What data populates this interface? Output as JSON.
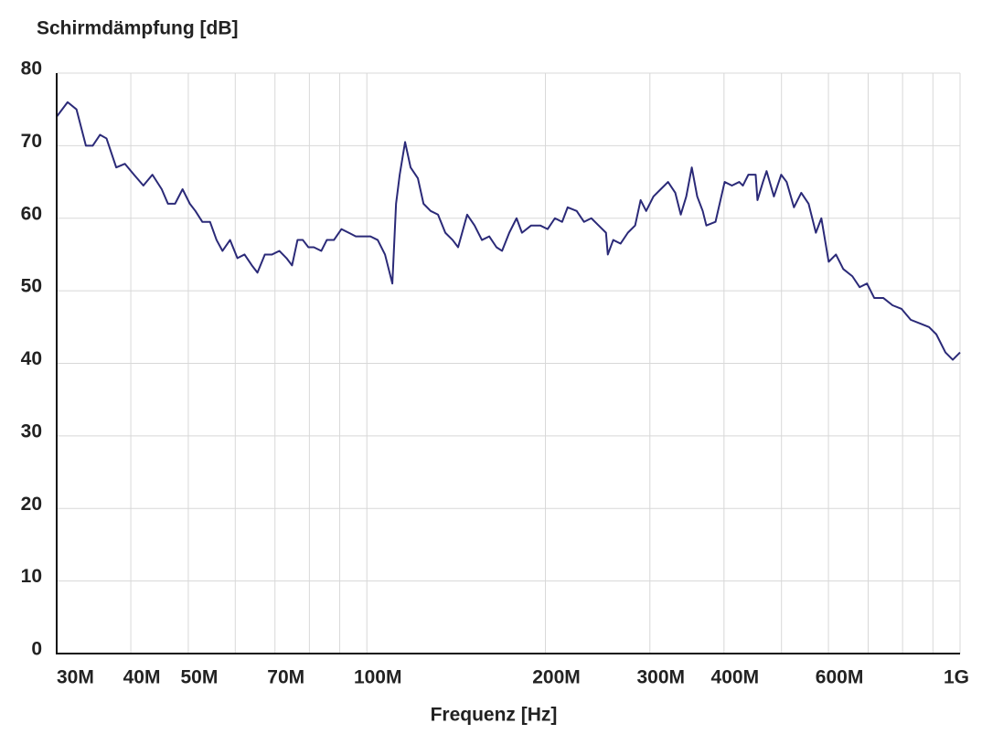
{
  "chart_data": {
    "type": "line",
    "title": "Schirmdämpfung [dB]",
    "x_label": "Frequenz [Hz]",
    "xscale": "log",
    "xlim": [
      30000000.0,
      1000000000.0
    ],
    "xticks": [
      {
        "value": 30000000.0,
        "label": "30M"
      },
      {
        "value": 40000000.0,
        "label": "40M"
      },
      {
        "value": 50000000.0,
        "label": "50M"
      },
      {
        "value": 70000000.0,
        "label": "70M"
      },
      {
        "value": 100000000.0,
        "label": "100M"
      },
      {
        "value": 200000000.0,
        "label": "200M"
      },
      {
        "value": 300000000.0,
        "label": "300M"
      },
      {
        "value": 400000000.0,
        "label": "400M"
      },
      {
        "value": 600000000.0,
        "label": "600M"
      },
      {
        "value": 1000000000.0,
        "label": "1G"
      }
    ],
    "xgrid": [
      60000000.0,
      80000000.0,
      90000000.0,
      500000000.0,
      700000000.0,
      800000000.0,
      900000000.0
    ],
    "ylim": [
      0,
      80
    ],
    "yticks": [
      0,
      10,
      20,
      30,
      40,
      50,
      60,
      70,
      80
    ],
    "grid": true,
    "color": "#2b2a78",
    "x": [
      30000000.0,
      31300000.0,
      32400000.0,
      33600000.0,
      34500000.0,
      35500000.0,
      36400000.0,
      37800000.0,
      39100000.0,
      40500000.0,
      42000000.0,
      43500000.0,
      45100000.0,
      46200000.0,
      47500000.0,
      48900000.0,
      50300000.0,
      51400000.0,
      52800000.0,
      54400000.0,
      55800000.0,
      57100000.0,
      58800000.0,
      60500000.0,
      62200000.0,
      64000000.0,
      65400000.0,
      67300000.0,
      69200000.0,
      71200000.0,
      73200000.0,
      74800000.0,
      76400000.0,
      78000000.0,
      79700000.0,
      81400000.0,
      83800000.0,
      85600000.0,
      88000000.0,
      90600000.0,
      93200000.0,
      95800000.0,
      98600000.0,
      101400000.0,
      104300000.0,
      107300000.0,
      110400000.0,
      112000000.0,
      113600000.0,
      116000000.0,
      118500000.0,
      121900000.0,
      124600000.0,
      128100000.0,
      131800000.0,
      135600000.0,
      139500000.0,
      142500000.0,
      147600000.0,
      151900000.0,
      156300000.0,
      160800000.0,
      165400000.0,
      169000000.0,
      173800000.0,
      178800000.0,
      182600000.0,
      189200000.0,
      196000000.0,
      201700000.0,
      207500000.0,
      213400000.0,
      218000000.0,
      225800000.0,
      232300000.0,
      239000000.0,
      245900000.0,
      253000000.0,
      254800000.0,
      260200000.0,
      267700000.0,
      275400000.0,
      283300000.0,
      289400000.0,
      295700000.0,
      304200000.0,
      312900000.0,
      321900000.0,
      331100000.0,
      338200000.0,
      345500000.0,
      353000000.0,
      360500000.0,
      368300000.0,
      373500000.0,
      387000000.0,
      401000000.0,
      412500000.0,
      424400000.0,
      430400000.0,
      439700000.0,
      452300000.0,
      455500000.0,
      465300000.0,
      471900000.0,
      485500000.0,
      499400000.0,
      510100000.0,
      524800000.0,
      539900000.0,
      555500000.0,
      571400000.0,
      583700000.0,
      600500000.0,
      617700000.0,
      635500000.0,
      658400000.0,
      677300000.0,
      696800000.0,
      716800000.0,
      742700000.0,
      769500000.0,
      797000000.0,
      825800000.0,
      855600000.0,
      886600000.0,
      912000000.0,
      944900000.0,
      972100000.0,
      1000000000.0
    ],
    "values": [
      74,
      76,
      75,
      70,
      70,
      71.5,
      71,
      67,
      67.5,
      66,
      64.5,
      66,
      64,
      62,
      62,
      64,
      62,
      61,
      59.5,
      59.5,
      57,
      55.5,
      57,
      54.5,
      55,
      53.5,
      52.5,
      55,
      55,
      55.5,
      54.5,
      53.5,
      57,
      57,
      56,
      56,
      55.5,
      57,
      57,
      58.5,
      58,
      57.5,
      57.5,
      57.5,
      57,
      55,
      51,
      62,
      66,
      70.5,
      67,
      65.5,
      62,
      61,
      60.5,
      58,
      57,
      56,
      60.5,
      59,
      57,
      57.5,
      56,
      55.5,
      58,
      60,
      58,
      59,
      59,
      58.5,
      60,
      59.5,
      61.5,
      61,
      59.5,
      60,
      59,
      58,
      55,
      57,
      56.5,
      58,
      59,
      62.5,
      61,
      63,
      64,
      65,
      63.5,
      60.5,
      63,
      67,
      63,
      61,
      59,
      59.5,
      65,
      64.5,
      65,
      64.5,
      66,
      66,
      62.5,
      65,
      66.5,
      63,
      66,
      65,
      61.5,
      63.5,
      62,
      58,
      60,
      54,
      55,
      53,
      52,
      50.5,
      51,
      49,
      49,
      48,
      47.5,
      46,
      45.5,
      45,
      44,
      41.5,
      40.5,
      41.5
    ]
  }
}
